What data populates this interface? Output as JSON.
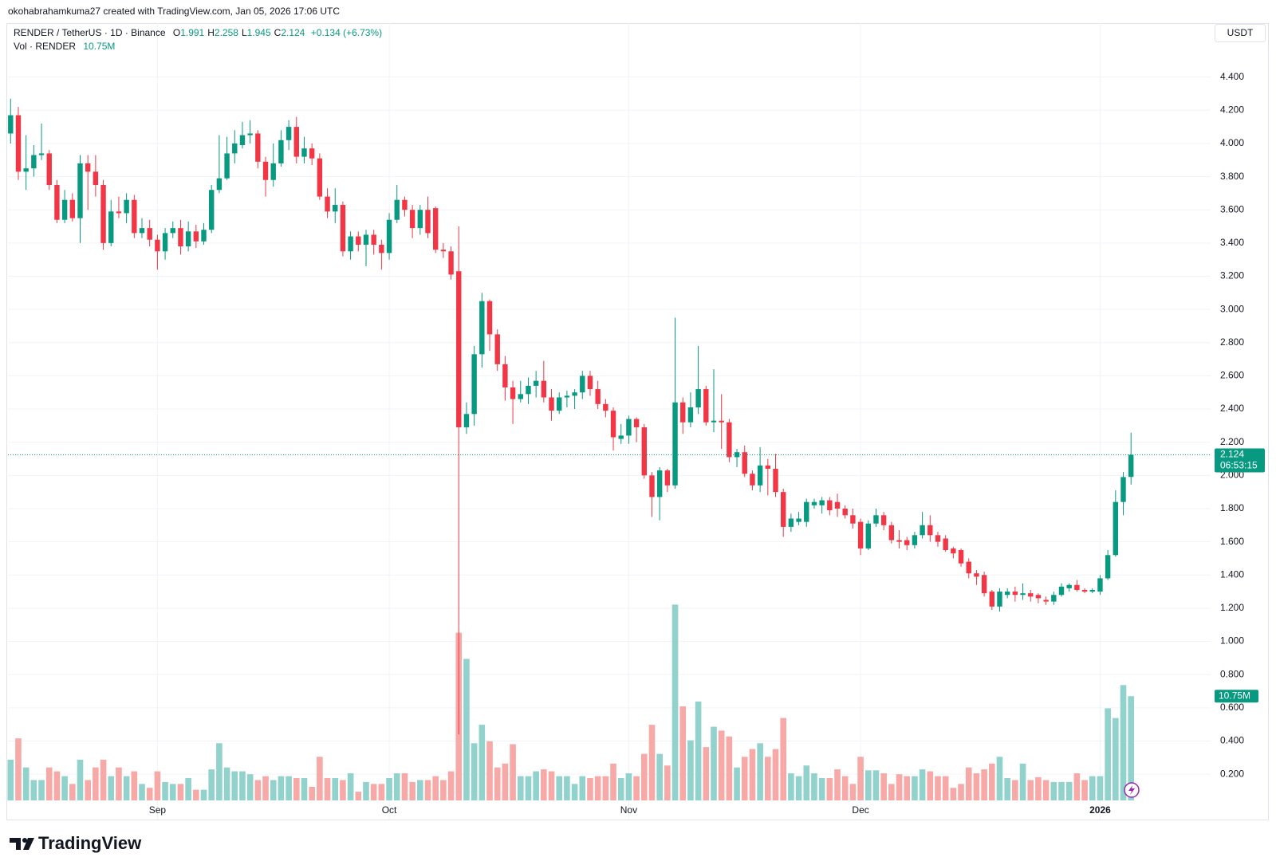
{
  "header": {
    "caption": "okohabrahamkuma27 created with TradingView.com, Jan 05, 2026 17:06 UTC"
  },
  "chart_data": {
    "type": "candlestick",
    "title": "RENDER / TetherUS · 1D · Binance",
    "ohlc_letters": [
      "O",
      "H",
      "L",
      "C"
    ],
    "change_label": "+0.134 (+6.73%)",
    "volume_title": "Vol · RENDER",
    "volume_last_label": "10.75M",
    "currency": "USDT",
    "countdown": "06:53:15",
    "up_color": "#089981",
    "down_color": "#f23645",
    "volume_up_color": "#92d2cc",
    "volume_down_color": "#f7a9a7",
    "open": [
      4.06,
      4.17,
      3.83,
      3.85,
      3.93,
      3.94,
      3.75,
      3.54,
      3.66,
      3.55,
      3.88,
      3.83,
      3.75,
      3.4,
      3.59,
      3.58,
      3.66,
      3.46,
      3.49,
      3.42,
      3.35,
      3.46,
      3.49,
      3.38,
      3.47,
      3.41,
      3.48,
      3.72,
      3.79,
      3.94,
      3.99,
      4.05,
      4.06,
      3.89,
      3.78,
      3.88,
      4.02,
      4.1,
      3.92,
      3.97,
      3.91,
      3.68,
      3.59,
      3.63,
      3.35,
      3.44,
      3.39,
      3.45,
      3.39,
      3.34,
      3.54,
      3.66,
      3.6,
      3.49,
      3.6,
      3.61,
      3.36,
      3.35,
      3.23,
      2.29,
      2.37,
      2.73,
      3.05,
      2.85,
      2.67,
      2.53,
      2.46,
      2.49,
      2.54,
      2.57,
      2.47,
      2.39,
      2.47,
      2.48,
      2.5,
      2.6,
      2.52,
      2.43,
      2.39,
      2.22,
      2.24,
      2.34,
      2.29,
      2.0,
      1.87,
      2.03,
      1.94,
      2.44,
      2.32,
      2.41,
      2.52,
      2.32,
      2.33,
      2.32,
      2.11,
      2.14,
      2.01,
      1.94,
      2.06,
      2.04,
      1.9,
      1.69,
      1.72,
      1.72,
      1.82,
      1.82,
      1.85,
      1.84,
      1.8,
      1.76,
      1.72,
      1.56,
      1.71,
      1.76,
      1.7,
      1.61,
      1.61,
      1.58,
      1.64,
      1.7,
      1.64,
      1.62,
      1.56,
      1.55,
      1.48,
      1.41,
      1.4,
      1.3,
      1.21,
      1.28,
      1.3,
      1.28,
      1.29,
      1.28,
      1.25,
      1.24,
      1.28,
      1.32,
      1.34,
      1.31,
      1.3,
      1.3,
      1.38,
      1.52,
      1.84,
      1.991
    ],
    "high": [
      4.27,
      4.22,
      4.05,
      3.99,
      4.12,
      3.96,
      3.78,
      3.72,
      3.7,
      3.93,
      3.93,
      3.93,
      3.78,
      3.66,
      3.68,
      3.7,
      3.69,
      3.55,
      3.54,
      3.45,
      3.49,
      3.53,
      3.54,
      3.53,
      3.51,
      3.52,
      3.75,
      4.05,
      4.04,
      4.08,
      4.13,
      4.14,
      4.08,
      3.92,
      4.0,
      4.08,
      4.14,
      4.16,
      4.04,
      4.0,
      3.94,
      3.73,
      3.73,
      3.65,
      3.47,
      3.47,
      3.48,
      3.48,
      3.42,
      3.58,
      3.75,
      3.68,
      3.63,
      3.63,
      3.68,
      3.62,
      3.4,
      3.38,
      3.5,
      2.44,
      2.78,
      3.1,
      3.06,
      2.88,
      2.72,
      2.57,
      2.57,
      2.59,
      2.63,
      2.69,
      2.52,
      2.5,
      2.51,
      2.52,
      2.63,
      2.63,
      2.57,
      2.46,
      2.41,
      2.31,
      2.36,
      2.35,
      2.31,
      2.02,
      2.05,
      2.04,
      2.95,
      2.47,
      2.5,
      2.78,
      2.54,
      2.64,
      2.49,
      2.34,
      2.16,
      2.18,
      2.03,
      2.17,
      2.1,
      2.13,
      1.92,
      1.77,
      1.78,
      1.86,
      1.86,
      1.87,
      1.87,
      1.89,
      1.82,
      1.8,
      1.74,
      1.73,
      1.8,
      1.78,
      1.72,
      1.67,
      1.63,
      1.66,
      1.78,
      1.76,
      1.66,
      1.64,
      1.57,
      1.56,
      1.5,
      1.43,
      1.42,
      1.31,
      1.32,
      1.32,
      1.33,
      1.35,
      1.31,
      1.29,
      1.27,
      1.3,
      1.35,
      1.35,
      1.37,
      1.32,
      1.32,
      1.4,
      1.55,
      1.91,
      2.02,
      2.258
    ],
    "low": [
      4.0,
      3.78,
      3.72,
      3.8,
      3.9,
      3.72,
      3.52,
      3.52,
      3.53,
      3.4,
      3.6,
      3.68,
      3.36,
      3.38,
      3.55,
      3.52,
      3.43,
      3.43,
      3.38,
      3.24,
      3.3,
      3.43,
      3.33,
      3.35,
      3.37,
      3.39,
      3.46,
      3.7,
      3.78,
      3.88,
      3.97,
      4.0,
      3.85,
      3.68,
      3.74,
      3.86,
      3.96,
      3.88,
      3.88,
      3.87,
      3.66,
      3.55,
      3.52,
      3.32,
      3.3,
      3.35,
      3.26,
      3.33,
      3.24,
      3.3,
      3.52,
      3.56,
      3.43,
      3.45,
      3.43,
      3.34,
      3.31,
      3.18,
      0.44,
      2.25,
      2.3,
      2.65,
      2.75,
      2.63,
      2.45,
      2.31,
      2.44,
      2.43,
      2.47,
      2.44,
      2.33,
      2.37,
      2.41,
      2.4,
      2.46,
      2.48,
      2.4,
      2.35,
      2.15,
      2.19,
      2.19,
      2.2,
      1.98,
      1.75,
      1.73,
      1.9,
      1.92,
      2.25,
      2.29,
      2.37,
      2.3,
      2.26,
      2.16,
      2.08,
      2.05,
      1.99,
      1.91,
      1.9,
      1.88,
      1.87,
      1.63,
      1.66,
      1.7,
      1.69,
      1.8,
      1.77,
      1.76,
      1.75,
      1.74,
      1.68,
      1.52,
      1.55,
      1.69,
      1.67,
      1.59,
      1.56,
      1.55,
      1.56,
      1.62,
      1.6,
      1.57,
      1.54,
      1.5,
      1.45,
      1.38,
      1.34,
      1.27,
      1.19,
      1.18,
      1.26,
      1.24,
      1.25,
      1.24,
      1.23,
      1.22,
      1.22,
      1.27,
      1.3,
      1.3,
      1.29,
      1.29,
      1.28,
      1.37,
      1.51,
      1.76,
      1.945
    ],
    "close": [
      4.17,
      3.83,
      3.85,
      3.93,
      3.94,
      3.75,
      3.54,
      3.66,
      3.55,
      3.88,
      3.83,
      3.75,
      3.4,
      3.59,
      3.58,
      3.66,
      3.46,
      3.49,
      3.42,
      3.35,
      3.46,
      3.49,
      3.38,
      3.47,
      3.41,
      3.48,
      3.72,
      3.79,
      3.94,
      4.0,
      4.05,
      4.06,
      3.89,
      3.78,
      3.88,
      4.02,
      4.1,
      3.92,
      3.97,
      3.91,
      3.68,
      3.59,
      3.63,
      3.35,
      3.44,
      3.39,
      3.45,
      3.39,
      3.34,
      3.54,
      3.66,
      3.6,
      3.49,
      3.6,
      3.46,
      3.36,
      3.35,
      3.21,
      2.29,
      2.37,
      2.73,
      3.05,
      2.85,
      2.67,
      2.53,
      2.46,
      2.49,
      2.54,
      2.57,
      2.47,
      2.39,
      2.47,
      2.48,
      2.5,
      2.6,
      2.52,
      2.43,
      2.39,
      2.23,
      2.24,
      2.34,
      2.29,
      2.0,
      1.87,
      2.03,
      1.94,
      2.44,
      2.32,
      2.41,
      2.52,
      2.32,
      2.33,
      2.32,
      2.11,
      2.14,
      2.01,
      1.94,
      2.06,
      2.04,
      1.9,
      1.69,
      1.74,
      1.74,
      1.84,
      1.84,
      1.85,
      1.79,
      1.8,
      1.76,
      1.71,
      1.56,
      1.71,
      1.76,
      1.7,
      1.61,
      1.6,
      1.58,
      1.64,
      1.7,
      1.64,
      1.6,
      1.55,
      1.53,
      1.47,
      1.41,
      1.39,
      1.29,
      1.21,
      1.3,
      1.3,
      1.28,
      1.29,
      1.27,
      1.26,
      1.24,
      1.28,
      1.33,
      1.34,
      1.31,
      1.3,
      1.31,
      1.38,
      1.52,
      1.84,
      1.99,
      2.124
    ],
    "volume": [
      4.2,
      6.4,
      3.4,
      2.1,
      2.1,
      3.4,
      3.0,
      2.5,
      1.7,
      4.2,
      2.1,
      3.4,
      4.2,
      2.5,
      3.4,
      2.5,
      3.0,
      1.7,
      1.3,
      3.0,
      1.9,
      1.7,
      1.7,
      2.3,
      1.1,
      1.1,
      3.2,
      5.9,
      3.4,
      3.0,
      3.0,
      2.7,
      2.1,
      2.5,
      2.1,
      2.5,
      2.5,
      2.3,
      2.3,
      1.4,
      4.5,
      2.3,
      2.3,
      2.1,
      2.8,
      0.9,
      1.9,
      1.7,
      1.7,
      2.3,
      2.8,
      2.8,
      1.9,
      2.1,
      2.1,
      2.5,
      2.1,
      3.0,
      17.3,
      14.6,
      5.9,
      7.8,
      6.1,
      3.4,
      3.8,
      5.8,
      2.5,
      2.5,
      3.0,
      3.2,
      3.0,
      2.5,
      2.5,
      1.7,
      2.5,
      2.3,
      2.5,
      2.5,
      3.8,
      2.3,
      2.8,
      2.5,
      4.8,
      7.8,
      4.8,
      3.6,
      20.2,
      9.7,
      6.2,
      10.2,
      5.5,
      7.6,
      7.2,
      6.6,
      3.4,
      4.5,
      5.3,
      5.9,
      4.5,
      5.3,
      8.5,
      2.8,
      2.5,
      3.6,
      2.8,
      2.3,
      2.3,
      3.2,
      2.5,
      1.7,
      4.5,
      3.1,
      3.1,
      2.8,
      1.7,
      2.7,
      2.5,
      2.5,
      3.2,
      3.0,
      2.5,
      2.5,
      1.3,
      1.7,
      3.4,
      2.8,
      3.2,
      3.8,
      4.5,
      2.3,
      2.1,
      3.8,
      2.1,
      2.4,
      2.1,
      1.9,
      1.9,
      1.9,
      2.8,
      2.1,
      2.5,
      2.5,
      9.5,
      8.5,
      11.9,
      10.75
    ],
    "ylim": [
      0.042,
      4.725
    ],
    "yticks": [
      {
        "value": 0.2,
        "label": "0.200"
      },
      {
        "value": 0.4,
        "label": "0.400"
      },
      {
        "value": 0.6,
        "label": "0.600"
      },
      {
        "value": 0.8,
        "label": "0.800"
      },
      {
        "value": 1.0,
        "label": "1.000"
      },
      {
        "value": 1.2,
        "label": "1.200"
      },
      {
        "value": 1.4,
        "label": "1.400"
      },
      {
        "value": 1.6,
        "label": "1.600"
      },
      {
        "value": 1.8,
        "label": "1.800"
      },
      {
        "value": 2.0,
        "label": "2.000"
      },
      {
        "value": 2.2,
        "label": "2.200"
      },
      {
        "value": 2.4,
        "label": "2.400"
      },
      {
        "value": 2.6,
        "label": "2.600"
      },
      {
        "value": 2.8,
        "label": "2.800"
      },
      {
        "value": 3.0,
        "label": "3.000"
      },
      {
        "value": 3.2,
        "label": "3.200"
      },
      {
        "value": 3.4,
        "label": "3.400"
      },
      {
        "value": 3.6,
        "label": "3.600"
      },
      {
        "value": 3.8,
        "label": "3.800"
      },
      {
        "value": 4.0,
        "label": "4.000"
      },
      {
        "value": 4.2,
        "label": "4.200"
      },
      {
        "value": 4.4,
        "label": "4.400"
      }
    ],
    "volume_lim": [
      0,
      25
    ],
    "xlim": [
      -0.34,
      155.3
    ],
    "xticks": [
      {
        "value": 19,
        "label": "Sep"
      },
      {
        "value": 49,
        "label": "Oct"
      },
      {
        "value": 80,
        "label": "Nov"
      },
      {
        "value": 110,
        "label": "Dec"
      },
      {
        "value": 141,
        "label": "2026"
      }
    ],
    "grid": true,
    "last_price_line": true
  },
  "footer": {
    "logo": "TradingView"
  }
}
